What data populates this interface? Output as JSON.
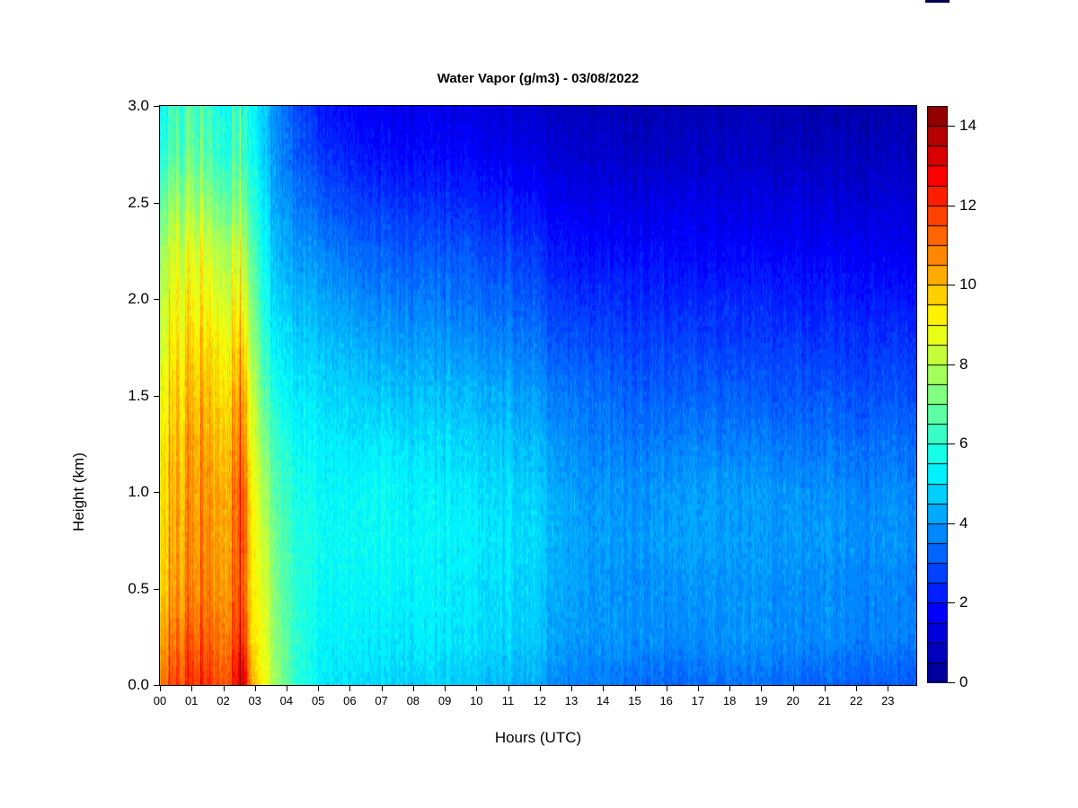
{
  "chart_data": {
    "type": "heatmap",
    "title": "Water Vapor (g/m3) - 03/08/2022",
    "xlabel": "Hours (UTC)",
    "ylabel": "Height (km)",
    "x_range_hours": [
      0,
      23.9
    ],
    "y_range_km": [
      0.0,
      3.0
    ],
    "x_tick_labels": [
      "00",
      "01",
      "02",
      "03",
      "04",
      "05",
      "06",
      "07",
      "08",
      "09",
      "10",
      "11",
      "12",
      "13",
      "14",
      "15",
      "16",
      "17",
      "18",
      "19",
      "20",
      "21",
      "22",
      "23"
    ],
    "x_tick_values": [
      0,
      1,
      2,
      3,
      4,
      5,
      6,
      7,
      8,
      9,
      10,
      11,
      12,
      13,
      14,
      15,
      16,
      17,
      18,
      19,
      20,
      21,
      22,
      23
    ],
    "y_tick_labels": [
      "0.0",
      "0.5",
      "1.0",
      "1.5",
      "2.0",
      "2.5",
      "3.0"
    ],
    "y_tick_values": [
      0,
      0.5,
      1,
      1.5,
      2,
      2.5,
      3
    ],
    "grid": false,
    "legend": "colorbar-right",
    "y_heights_km": [
      3.0,
      2.75,
      2.5,
      2.25,
      2.0,
      1.75,
      1.5,
      1.25,
      1.0,
      0.75,
      0.5,
      0.25,
      0.0
    ],
    "x_hours": [
      0,
      1,
      2,
      2.4,
      2.6,
      2.9,
      3.3,
      3.7,
      4.2,
      5,
      6,
      7,
      8,
      9,
      10,
      11,
      11.5,
      12,
      12.3,
      13,
      14,
      15,
      16,
      17,
      18,
      19,
      20,
      21,
      22,
      23,
      24
    ],
    "values_g_m3_columns": [
      [
        6.3,
        6.6,
        7.6,
        8.4,
        8.8,
        9.2,
        9.6,
        9.9,
        10.1,
        10.2,
        10.4,
        11.0,
        11.6
      ],
      [
        6.2,
        6.5,
        7.4,
        8.3,
        8.8,
        9.3,
        9.7,
        10.0,
        10.2,
        10.3,
        10.5,
        11.0,
        11.7
      ],
      [
        6.0,
        6.3,
        7.2,
        8.2,
        8.8,
        9.4,
        9.8,
        10.2,
        10.5,
        10.6,
        10.8,
        11.2,
        11.8
      ],
      [
        5.9,
        6.2,
        7.0,
        8.0,
        8.7,
        9.4,
        10.0,
        10.4,
        10.8,
        10.9,
        11.0,
        11.5,
        12.3
      ],
      [
        5.8,
        6.0,
        6.8,
        7.8,
        8.6,
        9.5,
        10.3,
        10.8,
        11.4,
        11.5,
        11.4,
        12.0,
        13.4
      ],
      [
        5.5,
        5.6,
        6.1,
        6.7,
        7.2,
        7.7,
        8.3,
        8.7,
        9.1,
        9.2,
        9.3,
        9.5,
        10.2
      ],
      [
        4.6,
        4.7,
        5.0,
        5.4,
        5.7,
        6.2,
        6.7,
        7.2,
        7.8,
        8.2,
        8.5,
        8.7,
        9.0
      ],
      [
        3.7,
        3.8,
        4.1,
        4.4,
        4.8,
        5.2,
        5.7,
        6.2,
        6.6,
        6.9,
        7.1,
        7.3,
        7.5
      ],
      [
        3.0,
        3.2,
        3.6,
        4.0,
        4.4,
        4.8,
        5.2,
        5.5,
        5.8,
        6.0,
        6.1,
        6.2,
        6.2
      ],
      [
        2.2,
        2.6,
        3.2,
        3.8,
        4.3,
        4.7,
        5.0,
        5.3,
        5.5,
        5.6,
        5.5,
        5.4,
        5.2
      ],
      [
        1.8,
        2.2,
        2.8,
        3.4,
        3.9,
        4.4,
        4.8,
        5.1,
        5.4,
        5.5,
        5.4,
        5.3,
        5.0
      ],
      [
        1.6,
        2.0,
        2.6,
        3.2,
        3.7,
        4.2,
        4.7,
        5.2,
        5.6,
        5.6,
        5.4,
        5.2,
        4.9
      ],
      [
        1.5,
        1.9,
        2.5,
        3.1,
        3.6,
        4.1,
        4.6,
        5.0,
        5.3,
        5.4,
        5.3,
        5.2,
        4.8
      ],
      [
        1.4,
        1.8,
        2.4,
        3.0,
        3.5,
        4.0,
        4.5,
        4.9,
        5.2,
        5.3,
        5.2,
        5.1,
        4.7
      ],
      [
        1.3,
        1.7,
        2.3,
        2.9,
        3.4,
        3.9,
        4.4,
        4.8,
        5.1,
        5.2,
        5.1,
        5.0,
        4.6
      ],
      [
        1.2,
        1.6,
        2.2,
        2.8,
        3.3,
        3.8,
        4.3,
        4.7,
        5.0,
        5.1,
        5.0,
        4.9,
        4.5
      ],
      [
        1.0,
        1.3,
        1.9,
        2.5,
        3.0,
        3.5,
        4.0,
        4.4,
        4.7,
        4.8,
        4.7,
        4.6,
        4.2
      ],
      [
        1.1,
        1.5,
        2.1,
        2.7,
        3.2,
        3.7,
        4.2,
        4.6,
        4.9,
        5.0,
        4.9,
        4.8,
        4.4
      ],
      [
        0.8,
        1.1,
        1.6,
        2.1,
        2.6,
        3.1,
        3.6,
        4.0,
        4.3,
        4.4,
        4.3,
        4.2,
        3.8
      ],
      [
        0.7,
        1.0,
        1.5,
        2.0,
        2.5,
        3.0,
        3.5,
        3.8,
        4.1,
        4.2,
        4.1,
        4.0,
        3.6
      ],
      [
        0.7,
        1.0,
        1.4,
        1.9,
        2.4,
        2.9,
        3.3,
        3.6,
        3.9,
        4.0,
        3.9,
        3.9,
        3.5
      ],
      [
        0.6,
        0.9,
        1.4,
        1.9,
        2.4,
        2.8,
        3.2,
        3.6,
        3.9,
        4.0,
        3.9,
        3.9,
        3.4
      ],
      [
        0.6,
        0.9,
        1.4,
        1.9,
        2.3,
        2.8,
        3.2,
        3.6,
        4.0,
        4.1,
        3.9,
        3.8,
        3.3
      ],
      [
        0.6,
        0.9,
        1.4,
        1.8,
        2.3,
        2.8,
        3.2,
        3.7,
        4.1,
        4.1,
        3.9,
        3.8,
        3.3
      ],
      [
        0.6,
        0.9,
        1.3,
        1.8,
        2.3,
        2.7,
        3.2,
        3.6,
        4.0,
        4.1,
        3.9,
        3.9,
        3.4
      ],
      [
        0.6,
        0.9,
        1.3,
        1.8,
        2.3,
        2.7,
        3.1,
        3.6,
        4.0,
        4.0,
        3.9,
        3.9,
        3.4
      ],
      [
        0.5,
        0.8,
        1.3,
        1.7,
        2.2,
        2.7,
        3.1,
        3.5,
        3.9,
        4.0,
        3.8,
        3.8,
        3.3
      ],
      [
        0.5,
        0.8,
        1.2,
        1.7,
        2.2,
        2.6,
        3.1,
        3.5,
        3.9,
        4.0,
        3.8,
        3.8,
        3.2
      ],
      [
        0.5,
        0.8,
        1.2,
        1.7,
        2.2,
        2.6,
        3.0,
        3.4,
        3.8,
        3.9,
        3.8,
        3.7,
        3.2
      ],
      [
        0.5,
        0.8,
        1.2,
        1.6,
        2.1,
        2.6,
        3.0,
        3.4,
        3.8,
        3.9,
        3.7,
        3.7,
        3.1
      ],
      [
        0.5,
        0.8,
        1.2,
        1.6,
        2.1,
        2.6,
        3.0,
        3.4,
        3.8,
        3.9,
        3.7,
        3.7,
        3.1
      ]
    ],
    "colorbar": {
      "range": [
        0,
        14.5
      ],
      "level_step": 0.5,
      "tick_values": [
        0,
        2,
        4,
        6,
        8,
        10,
        12,
        14
      ],
      "tick_labels": [
        "0",
        "2",
        "4",
        "6",
        "8",
        "10",
        "12",
        "14"
      ],
      "colormap_stops": [
        {
          "pos": 0.0,
          "color": "#00008F"
        },
        {
          "pos": 0.125,
          "color": "#0000FF"
        },
        {
          "pos": 0.375,
          "color": "#00FFFF"
        },
        {
          "pos": 0.625,
          "color": "#FFFF00"
        },
        {
          "pos": 0.875,
          "color": "#FF0000"
        },
        {
          "pos": 1.0,
          "color": "#800000"
        }
      ]
    }
  }
}
